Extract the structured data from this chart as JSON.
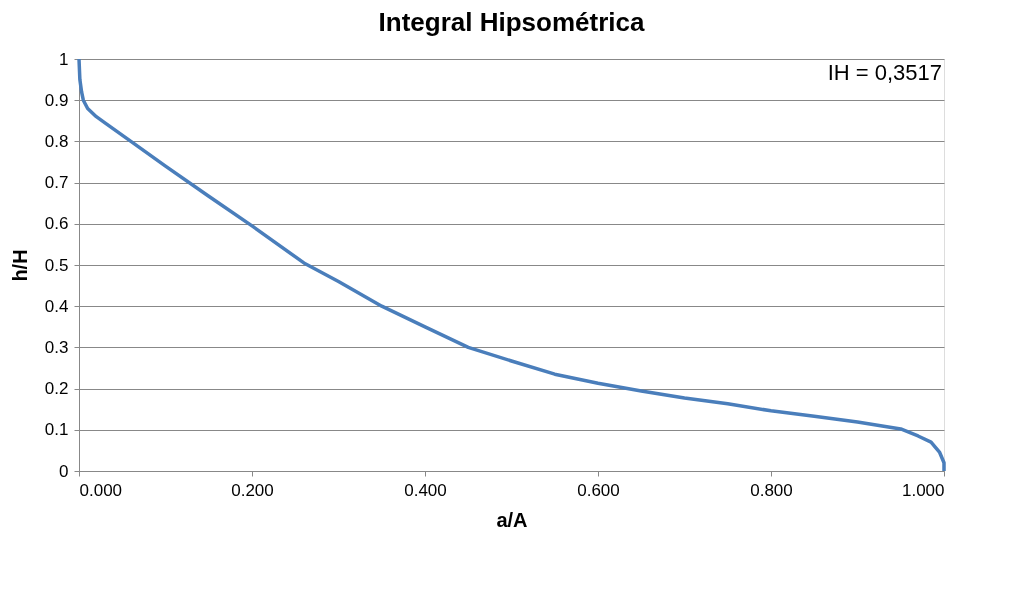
{
  "chart_data": {
    "type": "line",
    "title": "Integral Hipsométrica",
    "xlabel": "a/A",
    "ylabel": "h/H",
    "annotations": [
      "IH = 0,3517"
    ],
    "x": [
      0.0,
      0.001,
      0.003,
      0.005,
      0.01,
      0.02,
      0.03,
      0.06,
      0.1,
      0.15,
      0.2,
      0.26,
      0.3,
      0.35,
      0.4,
      0.45,
      0.5,
      0.55,
      0.6,
      0.65,
      0.7,
      0.75,
      0.8,
      0.85,
      0.9,
      0.95,
      0.97,
      0.985,
      0.995,
      1.0,
      1.0
    ],
    "series": [
      {
        "color": "#4a7ebb",
        "values": [
          1.0,
          0.95,
          0.92,
          0.9,
          0.88,
          0.86,
          0.845,
          0.8,
          0.74,
          0.667,
          0.595,
          0.505,
          0.46,
          0.4,
          0.35,
          0.3,
          0.267,
          0.235,
          0.213,
          0.194,
          0.177,
          0.163,
          0.146,
          0.133,
          0.119,
          0.102,
          0.085,
          0.07,
          0.045,
          0.02,
          0.0
        ]
      }
    ],
    "xlim": [
      0,
      1
    ],
    "xticks": [
      {
        "value": 0,
        "label": "0.000"
      },
      {
        "value": 0.2,
        "label": "0.200"
      },
      {
        "value": 0.4,
        "label": "0.400"
      },
      {
        "value": 0.6,
        "label": "0.600"
      },
      {
        "value": 0.8,
        "label": "0.800"
      },
      {
        "value": 1,
        "label": "1.000"
      }
    ],
    "ylim": [
      0,
      1
    ],
    "yticks": [
      0,
      0.1,
      0.2,
      0.3,
      0.4,
      0.5,
      0.6,
      0.7,
      0.8,
      0.9,
      1
    ],
    "grid": "y",
    "legend": false,
    "marker": "none",
    "line_style": "solid"
  }
}
